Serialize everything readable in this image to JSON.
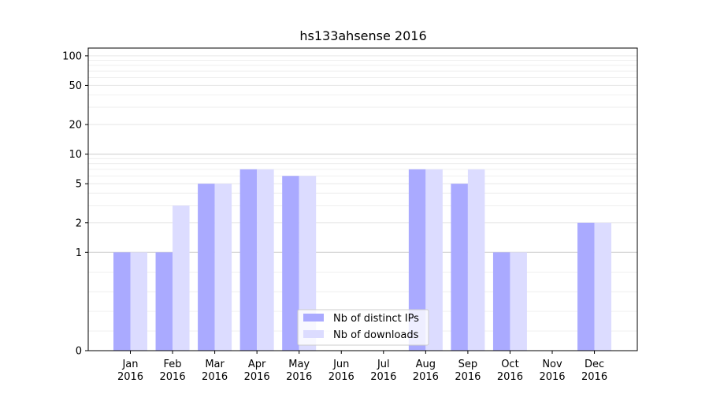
{
  "chart_data": {
    "type": "bar",
    "title": "hs133ahsense 2016",
    "scale": "symlog",
    "ylim": [
      0,
      120
    ],
    "yticks": [
      0,
      1,
      2,
      5,
      10,
      20,
      50,
      100
    ],
    "categories": [
      [
        "Jan",
        "2016"
      ],
      [
        "Feb",
        "2016"
      ],
      [
        "Mar",
        "2016"
      ],
      [
        "Apr",
        "2016"
      ],
      [
        "May",
        "2016"
      ],
      [
        "Jun",
        "2016"
      ],
      [
        "Jul",
        "2016"
      ],
      [
        "Aug",
        "2016"
      ],
      [
        "Sep",
        "2016"
      ],
      [
        "Oct",
        "2016"
      ],
      [
        "Nov",
        "2016"
      ],
      [
        "Dec",
        "2016"
      ]
    ],
    "series": [
      {
        "name": "Nb of distinct IPs",
        "color": "#aaaaff",
        "values": [
          1,
          1,
          5,
          7,
          6,
          0,
          0,
          7,
          5,
          1,
          0,
          2
        ]
      },
      {
        "name": "Nb of downloads",
        "color": "#dcdcff",
        "values": [
          1,
          3,
          5,
          7,
          6,
          0,
          0,
          7,
          7,
          1,
          0,
          2
        ]
      }
    ],
    "legend": {
      "placement": "lower-center"
    },
    "grid": true
  }
}
